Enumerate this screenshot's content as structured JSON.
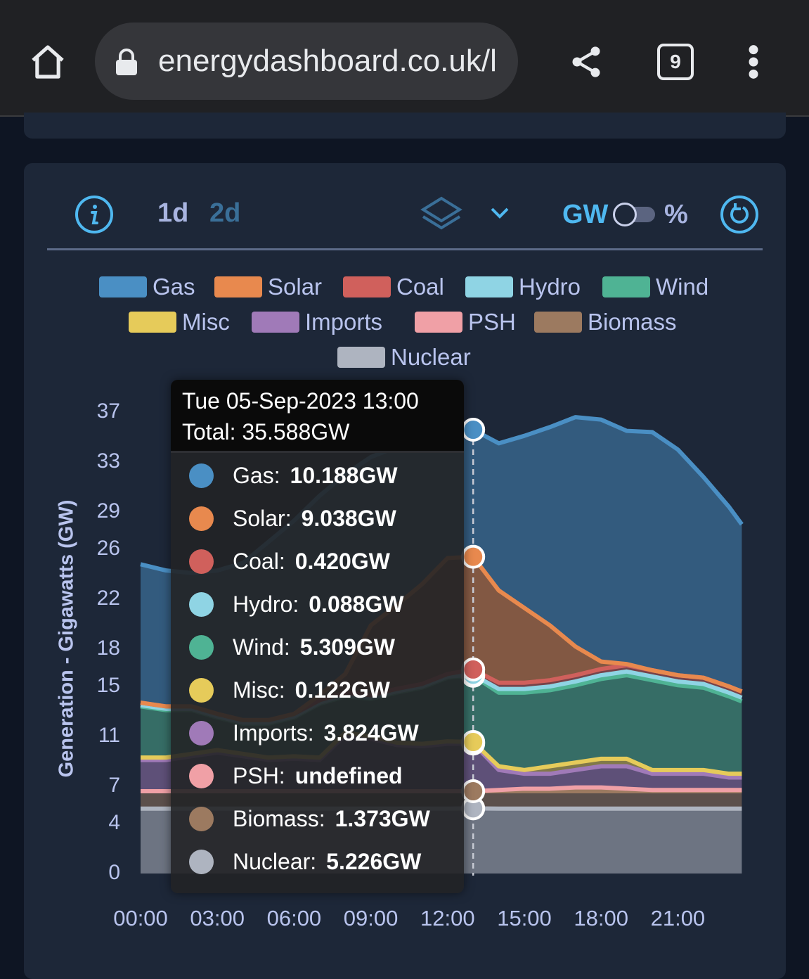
{
  "browser": {
    "url": "energydashboard.co.uk/l",
    "tab_count": "9"
  },
  "controls": {
    "range_1d": "1d",
    "range_2d": "2d",
    "unit_gw": "GW",
    "unit_pct": "%"
  },
  "legend": [
    {
      "label": "Gas",
      "color": "#4a8fc4"
    },
    {
      "label": "Solar",
      "color": "#e8894e"
    },
    {
      "label": "Coal",
      "color": "#d0605c"
    },
    {
      "label": "Hydro",
      "color": "#8fd4e4"
    },
    {
      "label": "Wind",
      "color": "#4fb394"
    },
    {
      "label": "Misc",
      "color": "#e6cb5a"
    },
    {
      "label": "Imports",
      "color": "#a07ab8"
    },
    {
      "label": "PSH",
      "color": "#f0a0a6"
    },
    {
      "label": "Biomass",
      "color": "#9c7a60"
    },
    {
      "label": "Nuclear",
      "color": "#aeb4c0"
    }
  ],
  "tooltip": {
    "date": "Tue 05-Sep-2023 13:00",
    "total": "Total: 35.588GW",
    "rows": [
      {
        "label": "Gas:",
        "value": "10.188GW",
        "color": "#4a8fc4"
      },
      {
        "label": "Solar:",
        "value": "9.038GW",
        "color": "#e8894e"
      },
      {
        "label": "Coal:",
        "value": "0.420GW",
        "color": "#d0605c"
      },
      {
        "label": "Hydro:",
        "value": "0.088GW",
        "color": "#8fd4e4"
      },
      {
        "label": "Wind:",
        "value": "5.309GW",
        "color": "#4fb394"
      },
      {
        "label": "Misc:",
        "value": "0.122GW",
        "color": "#e6cb5a"
      },
      {
        "label": "Imports:",
        "value": "3.824GW",
        "color": "#a07ab8"
      },
      {
        "label": "PSH:",
        "value": "undefined",
        "color": "#f0a0a6"
      },
      {
        "label": "Biomass:",
        "value": "1.373GW",
        "color": "#9c7a60"
      },
      {
        "label": "Nuclear:",
        "value": "5.226GW",
        "color": "#aeb4c0"
      }
    ]
  },
  "chart_data": {
    "type": "area",
    "stacked": true,
    "ylabel": "Generation - Gigawatts (GW)",
    "xlabel": "",
    "ylim": [
      0,
      37
    ],
    "yticks": [
      "37",
      "33",
      "29",
      "26",
      "22",
      "18",
      "15",
      "11",
      "7",
      "4",
      "0"
    ],
    "xticks": [
      "00:00",
      "03:00",
      "06:00",
      "09:00",
      "12:00",
      "15:00",
      "18:00",
      "21:00"
    ],
    "x_hours": [
      0,
      1,
      2,
      3,
      4,
      5,
      6,
      7,
      8,
      9,
      10,
      11,
      12,
      13,
      14,
      15,
      16,
      17,
      18,
      19,
      20,
      21,
      22,
      23,
      23.5
    ],
    "hover_hour": 13,
    "series": [
      {
        "name": "Nuclear",
        "color": "#aeb4c0",
        "values": [
          5.2,
          5.2,
          5.2,
          5.2,
          5.2,
          5.2,
          5.2,
          5.2,
          5.2,
          5.2,
          5.2,
          5.2,
          5.2,
          5.226,
          5.2,
          5.2,
          5.2,
          5.2,
          5.2,
          5.2,
          5.2,
          5.2,
          5.2,
          5.2,
          5.2
        ]
      },
      {
        "name": "Biomass",
        "color": "#9c7a60",
        "values": [
          1.4,
          1.4,
          1.4,
          1.4,
          1.4,
          1.4,
          1.4,
          1.4,
          1.4,
          1.4,
          1.4,
          1.4,
          1.4,
          1.373,
          1.4,
          1.4,
          1.4,
          1.4,
          1.4,
          1.4,
          1.4,
          1.4,
          1.4,
          1.4,
          1.4
        ]
      },
      {
        "name": "PSH",
        "color": "#f0a0a6",
        "values": [
          0,
          0,
          0,
          0,
          0,
          0,
          0,
          0,
          0,
          0,
          0,
          0,
          0,
          null,
          0.1,
          0.2,
          0.2,
          0.3,
          0.3,
          0.2,
          0.1,
          0.1,
          0.1,
          0.1,
          0.1
        ]
      },
      {
        "name": "Imports",
        "color": "#a07ab8",
        "values": [
          2.5,
          2.5,
          2.8,
          3.1,
          2.8,
          2.5,
          2.6,
          2.5,
          4.5,
          4.2,
          3.7,
          3.6,
          3.8,
          3.824,
          1.6,
          1.2,
          1.2,
          1.4,
          1.7,
          1.8,
          1.3,
          1.3,
          1.3,
          1.0,
          1.0
        ]
      },
      {
        "name": "Misc",
        "color": "#e6cb5a",
        "values": [
          0.2,
          0.2,
          0.2,
          0.2,
          0.2,
          0.2,
          0.2,
          0.2,
          0.2,
          0.2,
          0.2,
          0.2,
          0.2,
          0.122,
          0.3,
          0.3,
          0.6,
          0.6,
          0.6,
          0.6,
          0.3,
          0.3,
          0.3,
          0.3,
          0.3
        ]
      },
      {
        "name": "Wind",
        "color": "#4fb394",
        "values": [
          4.1,
          3.8,
          3.5,
          2.6,
          2.4,
          2.7,
          3.1,
          4.3,
          2.9,
          3.0,
          4.0,
          4.5,
          5.1,
          5.309,
          5.9,
          6.2,
          6.1,
          6.2,
          6.4,
          6.7,
          7.2,
          6.8,
          6.6,
          6.2,
          5.8
        ]
      },
      {
        "name": "Hydro",
        "color": "#8fd4e4",
        "values": [
          0.1,
          0.1,
          0.1,
          0.1,
          0.1,
          0.1,
          0.1,
          0.1,
          0.1,
          0.1,
          0.1,
          0.1,
          0.1,
          0.088,
          0.3,
          0.3,
          0.3,
          0.3,
          0.3,
          0.3,
          0.3,
          0.3,
          0.3,
          0.3,
          0.3
        ]
      },
      {
        "name": "Coal",
        "color": "#d0605c",
        "values": [
          0.2,
          0.2,
          0.2,
          0.2,
          0.2,
          0.2,
          0.2,
          0.2,
          0.2,
          0.2,
          0.2,
          0.2,
          0.2,
          0.42,
          0.5,
          0.5,
          0.5,
          0.5,
          0.5,
          0.5,
          0.5,
          0.5,
          0.5,
          0.5,
          0.5
        ]
      },
      {
        "name": "Solar",
        "color": "#e8894e",
        "values": [
          0,
          0,
          0,
          0,
          0,
          0,
          0,
          0.4,
          1.5,
          5.6,
          6.7,
          8.0,
          9.3,
          9.038,
          7.4,
          6.0,
          4.4,
          2.3,
          0.6,
          0.1,
          0,
          0,
          0,
          0,
          0
        ]
      },
      {
        "name": "Gas",
        "color": "#4a8fc4",
        "values": [
          11.1,
          10.9,
          10.7,
          11.5,
          12.6,
          14.3,
          15.5,
          16.0,
          16.0,
          13.5,
          12.7,
          11.8,
          10.2,
          10.188,
          11.8,
          13.8,
          15.9,
          18.4,
          19.4,
          18.7,
          19.1,
          18.1,
          16.1,
          14.4,
          13.4
        ]
      }
    ]
  }
}
